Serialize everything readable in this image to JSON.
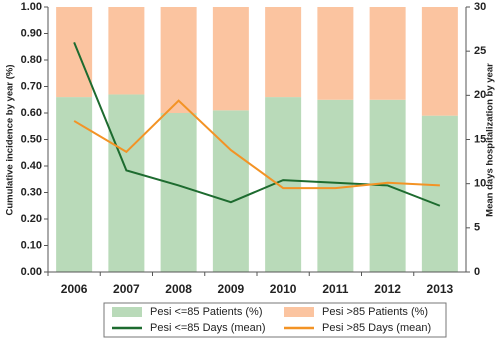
{
  "chart_data": {
    "type": "bar-line",
    "ylabel": "Cumulative incidence by year (%)",
    "y2label": "Mean days hospitalization by year",
    "categories": [
      "2006",
      "2007",
      "2008",
      "2009",
      "2010",
      "2011",
      "2012",
      "2013"
    ],
    "series": [
      {
        "name": "Pesi <=85 Patients (%)",
        "type": "bar",
        "color": "#b9dab9",
        "values": [
          0.66,
          0.67,
          0.6,
          0.61,
          0.66,
          0.65,
          0.65,
          0.59
        ]
      },
      {
        "name": "Pesi >85 Patients (%)",
        "type": "bar",
        "color": "#fbc4a0",
        "values": [
          0.34,
          0.33,
          0.4,
          0.39,
          0.34,
          0.35,
          0.35,
          0.41
        ]
      },
      {
        "name": "Pesi <=85 Days (mean)",
        "type": "line",
        "axis": "y2",
        "color": "#1d6b2f",
        "values": [
          26.0,
          11.5,
          9.8,
          7.9,
          10.4,
          10.1,
          9.8,
          7.5
        ]
      },
      {
        "name": "Pesi >85 Days (mean)",
        "type": "line",
        "axis": "y2",
        "color": "#f39325",
        "values": [
          17.1,
          13.6,
          19.4,
          13.8,
          9.5,
          9.5,
          10.1,
          9.8
        ]
      }
    ],
    "ylim": [
      0,
      1
    ],
    "yticks": [
      {
        "value": 0,
        "label": "0.00"
      },
      {
        "value": 0.1,
        "label": "0.10"
      },
      {
        "value": 0.2,
        "label": "0.20"
      },
      {
        "value": 0.3,
        "label": "0.30"
      },
      {
        "value": 0.4,
        "label": "0.40"
      },
      {
        "value": 0.5,
        "label": "0.50"
      },
      {
        "value": 0.6,
        "label": "0.60"
      },
      {
        "value": 0.7,
        "label": "0.70"
      },
      {
        "value": 0.8,
        "label": "0.80"
      },
      {
        "value": 0.9,
        "label": "0.90"
      },
      {
        "value": 1,
        "label": "1.00"
      }
    ],
    "y2lim": [
      0,
      30
    ],
    "y2ticks": [
      0,
      5,
      10,
      15,
      20,
      25,
      30
    ],
    "legend": "bottom"
  }
}
